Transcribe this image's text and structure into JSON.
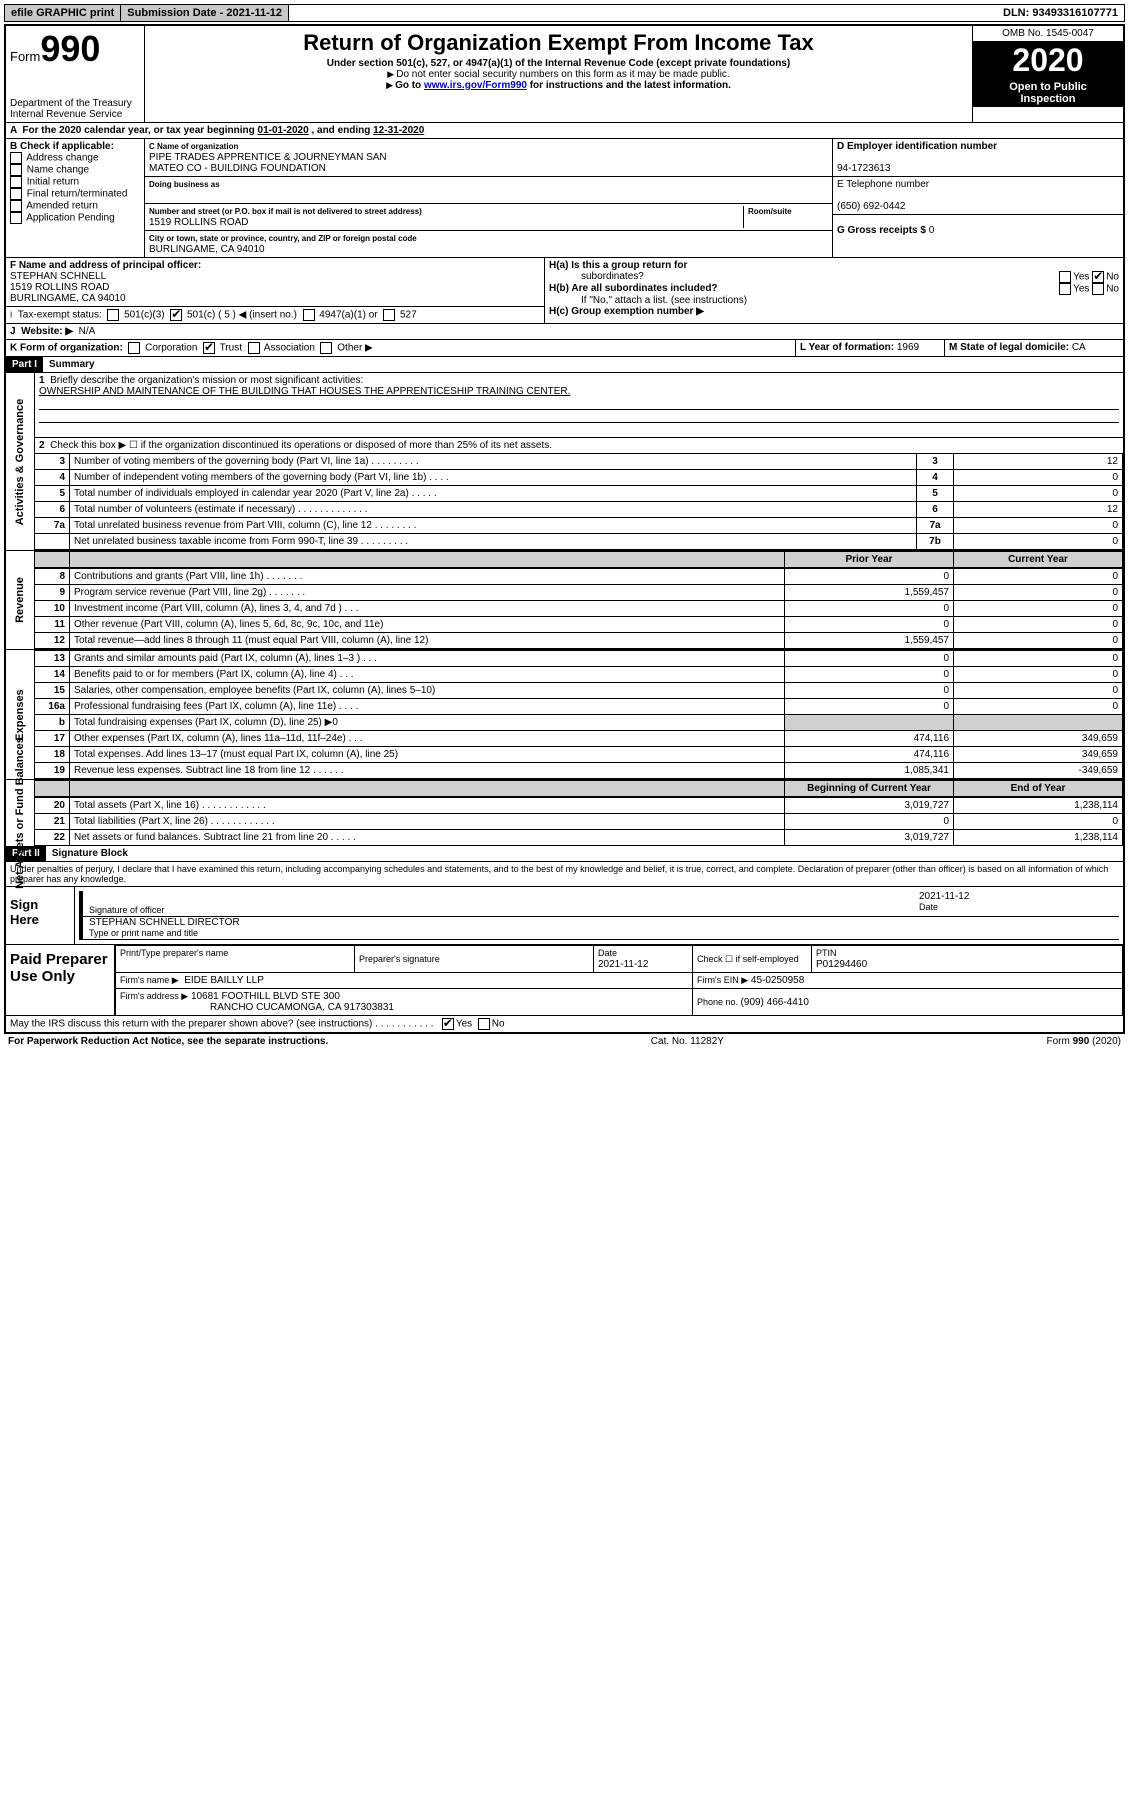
{
  "topbar": {
    "efile": "efile GRAPHIC print",
    "submission_label": "Submission Date - ",
    "submission_date": "2021-11-12",
    "dln_label": "DLN: ",
    "dln": "93493316107771"
  },
  "header": {
    "form_word": "Form",
    "form_no": "990",
    "dept1": "Department of the Treasury",
    "dept2": "Internal Revenue Service",
    "title": "Return of Organization Exempt From Income Tax",
    "subtitle": "Under section 501(c), 527, or 4947(a)(1) of the Internal Revenue Code (except private foundations)",
    "note1": "Do not enter social security numbers on this form as it may be made public.",
    "note2_pre": "Go to ",
    "note2_link": "www.irs.gov/Form990",
    "note2_post": " for instructions and the latest information.",
    "omb": "OMB No. 1545-0047",
    "year": "2020",
    "open1": "Open to Public",
    "open2": "Inspection"
  },
  "lineA": {
    "text_pre": "For the 2020 calendar year, or tax year beginning ",
    "begin": "01-01-2020",
    "mid": " , and ending ",
    "end": "12-31-2020"
  },
  "colB": {
    "label": "B Check if applicable:",
    "items": [
      "Address change",
      "Name change",
      "Initial return",
      "Final return/terminated",
      "Amended return",
      "Application Pending"
    ]
  },
  "colC": {
    "name_label": "C Name of organization",
    "name1": "PIPE TRADES APPRENTICE & JOURNEYMAN SAN",
    "name2": "MATEO CO - BUILDING FOUNDATION",
    "dba_label": "Doing business as",
    "street_label": "Number and street (or P.O. box if mail is not delivered to street address)",
    "room_label": "Room/suite",
    "street": "1519 ROLLINS ROAD",
    "city_label": "City or town, state or province, country, and ZIP or foreign postal code",
    "city": "BURLINGAME, CA  94010"
  },
  "colD": {
    "ein_label": "D Employer identification number",
    "ein": "94-1723613",
    "tel_label": "E Telephone number",
    "tel": "(650) 692-0442",
    "gross_label": "G Gross receipts $ ",
    "gross": "0"
  },
  "rowF": {
    "f_label": "F  Name and address of principal officer:",
    "f_name": "STEPHAN SCHNELL",
    "f_addr1": "1519 ROLLINS ROAD",
    "f_addr2": "BURLINGAME, CA  94010",
    "ha_label": "H(a)  Is this a group return for",
    "ha_label2": "subordinates?",
    "hb_label": "H(b)  Are all subordinates included?",
    "hb_note": "If \"No,\" attach a list. (see instructions)",
    "hc_label": "H(c)  Group exemption number ▶",
    "yes": "Yes",
    "no": "No"
  },
  "rowI": {
    "label": "Tax-exempt status:",
    "o1": "501(c)(3)",
    "o2": "501(c) ( 5 ) ◀ (insert no.)",
    "o3": "4947(a)(1) or",
    "o4": "527"
  },
  "rowJ": {
    "label": "Website: ▶",
    "val": "N/A"
  },
  "rowK": {
    "label": "K Form of organization:",
    "o1": "Corporation",
    "o2": "Trust",
    "o3": "Association",
    "o4": "Other ▶",
    "l_label": "L Year of formation: ",
    "l_val": "1969",
    "m_label": "M State of legal domicile: ",
    "m_val": "CA"
  },
  "part1": {
    "hdr": "Part I",
    "title": "Summary",
    "q1": "Briefly describe the organization's mission or most significant activities:",
    "mission": "OWNERSHIP AND MAINTENANCE OF THE BUILDING THAT HOUSES THE APPRENTICESHIP TRAINING CENTER.",
    "q2": "Check this box ▶ ☐  if the organization discontinued its operations or disposed of more than 25% of its net assets.",
    "side_gov": "Activities & Governance",
    "side_rev": "Revenue",
    "side_exp": "Expenses",
    "side_net": "Net Assets or Fund Balances",
    "col_prior": "Prior Year",
    "col_curr": "Current Year",
    "col_begin": "Beginning of Current Year",
    "col_end": "End of Year",
    "lines_gov": [
      {
        "n": "3",
        "t": "Number of voting members of the governing body (Part VI, line 1a)   .    .    .    .    .    .    .    .    .",
        "b": "3",
        "v": "12"
      },
      {
        "n": "4",
        "t": "Number of independent voting members of the governing body (Part VI, line 1b)    .    .    .    .",
        "b": "4",
        "v": "0"
      },
      {
        "n": "5",
        "t": "Total number of individuals employed in calendar year 2020 (Part V, line 2a)    .    .    .    .    .",
        "b": "5",
        "v": "0"
      },
      {
        "n": "6",
        "t": "Total number of volunteers (estimate if necessary)    .    .    .    .    .    .    .    .    .    .    .    .    .",
        "b": "6",
        "v": "12"
      },
      {
        "n": "7a",
        "t": "Total unrelated business revenue from Part VIII, column (C), line 12    .    .    .    .    .    .    .    .",
        "b": "7a",
        "v": "0"
      },
      {
        "n": "",
        "t": "Net unrelated business taxable income from Form 990-T, line 39    .    .    .    .    .    .    .    .    .",
        "b": "7b",
        "v": "0"
      }
    ],
    "lines_rev": [
      {
        "n": "8",
        "t": "Contributions and grants (Part VIII, line 1h)    .    .    .    .    .    .    .",
        "p": "0",
        "c": "0"
      },
      {
        "n": "9",
        "t": "Program service revenue (Part VIII, line 2g)    .    .    .    .    .    .    .",
        "p": "1,559,457",
        "c": "0"
      },
      {
        "n": "10",
        "t": "Investment income (Part VIII, column (A), lines 3, 4, and 7d )    .    .    .",
        "p": "0",
        "c": "0"
      },
      {
        "n": "11",
        "t": "Other revenue (Part VIII, column (A), lines 5, 6d, 8c, 9c, 10c, and 11e)",
        "p": "0",
        "c": "0"
      },
      {
        "n": "12",
        "t": "Total revenue—add lines 8 through 11 (must equal Part VIII, column (A), line 12)",
        "p": "1,559,457",
        "c": "0"
      }
    ],
    "lines_exp": [
      {
        "n": "13",
        "t": "Grants and similar amounts paid (Part IX, column (A), lines 1–3 )    .    .    .",
        "p": "0",
        "c": "0"
      },
      {
        "n": "14",
        "t": "Benefits paid to or for members (Part IX, column (A), line 4)    .    .    .",
        "p": "0",
        "c": "0"
      },
      {
        "n": "15",
        "t": "Salaries, other compensation, employee benefits (Part IX, column (A), lines 5–10)",
        "p": "0",
        "c": "0"
      },
      {
        "n": "16a",
        "t": "Professional fundraising fees (Part IX, column (A), line 11e)    .    .    .    .",
        "p": "0",
        "c": "0"
      },
      {
        "n": "b",
        "t": "Total fundraising expenses (Part IX, column (D), line 25)  ▶0",
        "p": "",
        "c": "",
        "grey": true
      },
      {
        "n": "17",
        "t": "Other expenses (Part IX, column (A), lines 11a–11d, 11f–24e)    .    .    .",
        "p": "474,116",
        "c": "349,659"
      },
      {
        "n": "18",
        "t": "Total expenses. Add lines 13–17 (must equal Part IX, column (A), line 25)",
        "p": "474,116",
        "c": "349,659"
      },
      {
        "n": "19",
        "t": "Revenue less expenses. Subtract line 18 from line 12    .    .    .    .    .    .",
        "p": "1,085,341",
        "c": "-349,659"
      }
    ],
    "lines_net": [
      {
        "n": "20",
        "t": "Total assets (Part X, line 16)    .    .    .    .    .    .    .    .    .    .    .    .",
        "p": "3,019,727",
        "c": "1,238,114"
      },
      {
        "n": "21",
        "t": "Total liabilities (Part X, line 26)    .    .    .    .    .    .    .    .    .    .    .    .",
        "p": "0",
        "c": "0"
      },
      {
        "n": "22",
        "t": "Net assets or fund balances. Subtract line 21 from line 20    .    .    .    .    .",
        "p": "3,019,727",
        "c": "1,238,114"
      }
    ]
  },
  "part2": {
    "hdr": "Part II",
    "title": "Signature Block",
    "perjury": "Under penalties of perjury, I declare that I have examined this return, including accompanying schedules and statements, and to the best of my knowledge and belief, it is true, correct, and complete. Declaration of preparer (other than officer) is based on all information of which preparer has any knowledge.",
    "sign_here": "Sign Here",
    "sig_officer": "Signature of officer",
    "sig_date_label": "Date",
    "sig_date": "2021-11-12",
    "officer_name": "STEPHAN SCHNELL  DIRECTOR",
    "officer_type": "Type or print name and title",
    "paid": "Paid Preparer Use Only",
    "prep_name_label": "Print/Type preparer's name",
    "prep_sig_label": "Preparer's signature",
    "prep_date_label": "Date",
    "prep_date": "2021-11-12",
    "prep_self": "Check ☐ if self-employed",
    "ptin_label": "PTIN",
    "ptin": "P01294460",
    "firm_name_label": "Firm's name      ▶",
    "firm_name": "EIDE BAILLY LLP",
    "firm_ein_label": "Firm's EIN ▶",
    "firm_ein": "45-0250958",
    "firm_addr_label": "Firm's address ▶",
    "firm_addr1": "10681 FOOTHILL BLVD STE 300",
    "firm_addr2": "RANCHO CUCAMONGA, CA  917303831",
    "phone_label": "Phone no. ",
    "phone": "(909) 466-4410",
    "discuss": "May the IRS discuss this return with the preparer shown above? (see instructions)    .    .    .    .    .    .    .    .    .    .    ."
  },
  "footer": {
    "left": "For Paperwork Reduction Act Notice, see the separate instructions.",
    "mid": "Cat. No. 11282Y",
    "right": "Form 990 (2020)"
  }
}
